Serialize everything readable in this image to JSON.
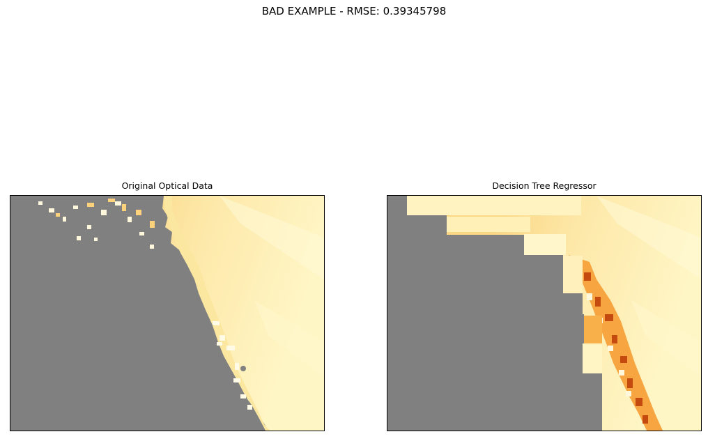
{
  "figure": {
    "suptitle": "BAD EXAMPLE - RMSE: 0.39345798"
  },
  "panels": [
    {
      "title": "Original Optical Data"
    },
    {
      "title": "Decision Tree Regressor"
    }
  ],
  "colors": {
    "masked": "#808080",
    "light": "#fff7c8",
    "mid": "#fdd078",
    "orange": "#f7a140",
    "dark": "#c44a10"
  }
}
